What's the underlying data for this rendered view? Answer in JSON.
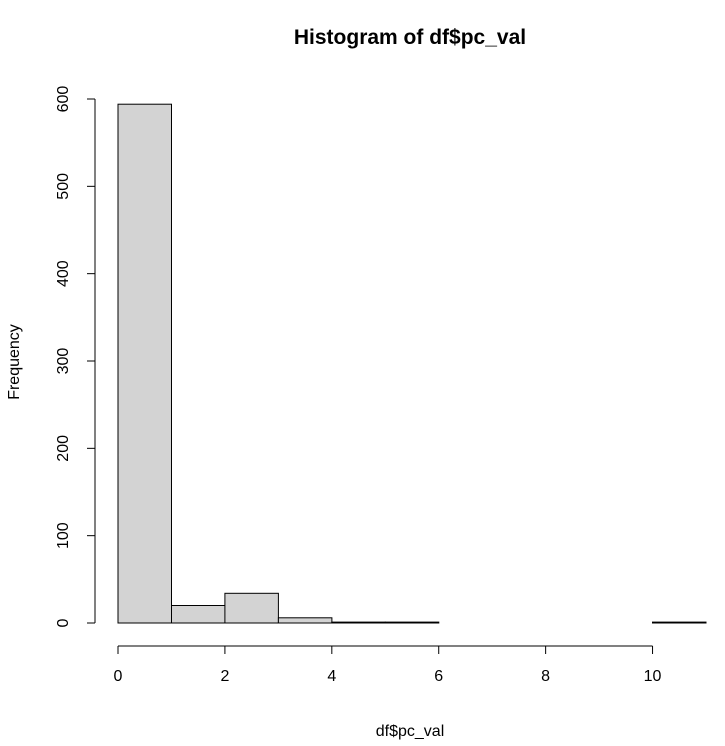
{
  "chart_data": {
    "type": "bar",
    "title": "Histogram of df$pc_val",
    "xlabel": "df$pc_val",
    "ylabel": "Frequency",
    "bins": [
      {
        "from": 0,
        "to": 1,
        "count": 594
      },
      {
        "from": 1,
        "to": 2,
        "count": 20
      },
      {
        "from": 2,
        "to": 3,
        "count": 34
      },
      {
        "from": 3,
        "to": 4,
        "count": 6
      },
      {
        "from": 4,
        "to": 5,
        "count": 1
      },
      {
        "from": 5,
        "to": 6,
        "count": 1
      },
      {
        "from": 6,
        "to": 7,
        "count": 0
      },
      {
        "from": 7,
        "to": 8,
        "count": 0
      },
      {
        "from": 8,
        "to": 9,
        "count": 0
      },
      {
        "from": 9,
        "to": 10,
        "count": 0
      },
      {
        "from": 10,
        "to": 11,
        "count": 1
      }
    ],
    "xticks": [
      0,
      2,
      4,
      6,
      8,
      10
    ],
    "yticks": [
      0,
      100,
      200,
      300,
      400,
      500,
      600
    ],
    "xlim": [
      0,
      11
    ],
    "ylim": [
      0,
      600
    ],
    "bar_color": "#d3d3d3",
    "grid": false
  }
}
